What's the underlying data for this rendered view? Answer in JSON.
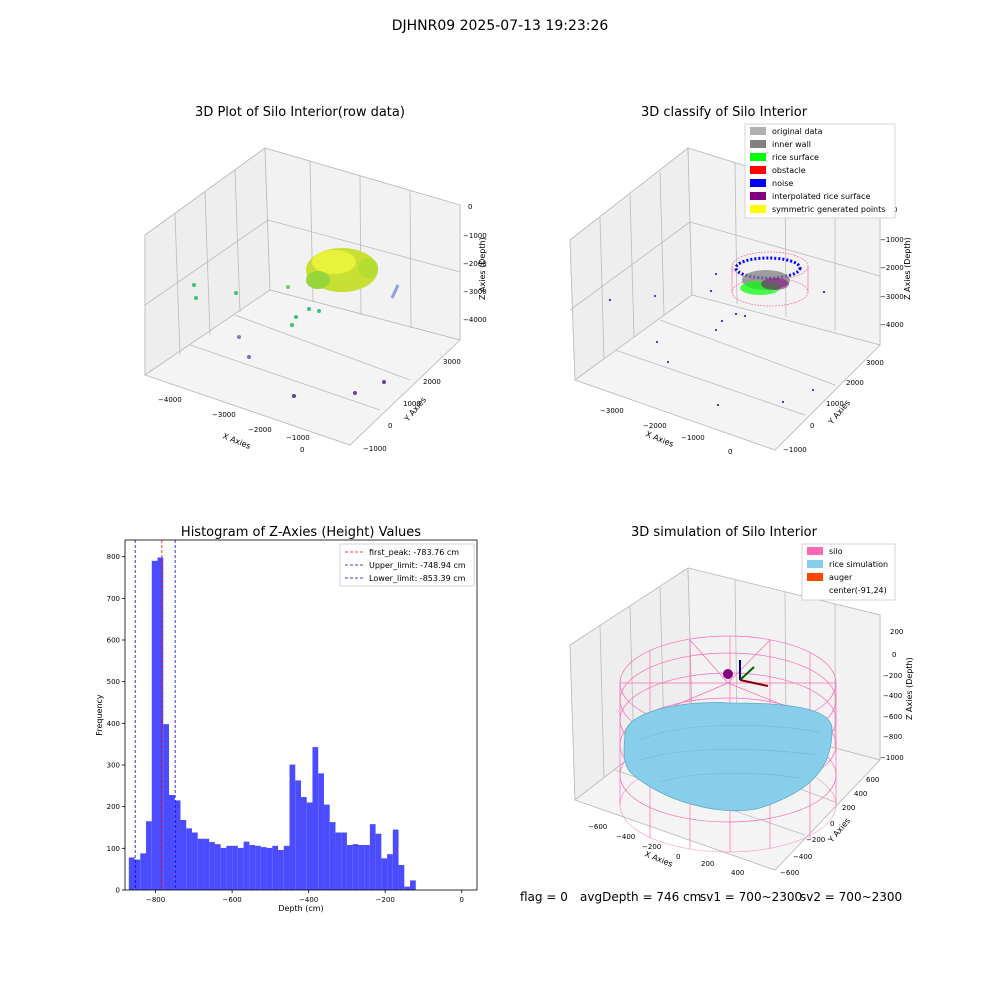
{
  "figure": {
    "suptitle": "DJHNR09 2025-07-13 19:23:26",
    "footer": {
      "flag": "flag = 0",
      "avg_depth": "avgDepth = 746 cm",
      "sv1": "sv1 = 700~2300",
      "sv2": "sv2 = 700~2300"
    }
  },
  "panels": {
    "raw": {
      "title": "3D Plot of Silo Interior(row data)",
      "xlabel": "X Axies",
      "ylabel": "Y Axies",
      "zlabel": "Z Axies (Depth)",
      "xticks": [
        "−4000",
        "−3000",
        "−2000",
        "−1000",
        "0"
      ],
      "yticks": [
        "−1000",
        "0",
        "1000",
        "2000",
        "3000"
      ],
      "zticks": [
        "0",
        "−1000",
        "−2000",
        "−3000",
        "−4000"
      ]
    },
    "classify": {
      "title": "3D classify of Silo Interior",
      "xlabel": "X Axies",
      "ylabel": "Y Axies",
      "zlabel": "Z Axies (Depth)",
      "xticks": [
        "−3000",
        "−2000",
        "−1000",
        "0"
      ],
      "yticks": [
        "−1000",
        "0",
        "1000",
        "2000",
        "3000"
      ],
      "zticks": [
        "0",
        "−1000",
        "−2000",
        "−3000",
        "−4000"
      ],
      "legend": [
        {
          "label": "original data",
          "color": "#b0b0b0"
        },
        {
          "label": "inner wall",
          "color": "#808080"
        },
        {
          "label": "rice surface",
          "color": "#00ff00"
        },
        {
          "label": "obstacle",
          "color": "#ff0000"
        },
        {
          "label": "noise",
          "color": "#0000ff"
        },
        {
          "label": "interpolated rice surface",
          "color": "#800080"
        },
        {
          "label": "symmetric generated points",
          "color": "#ffff00"
        }
      ]
    },
    "simulation": {
      "title": "3D simulation of Silo Interior",
      "xlabel": "X Axies",
      "ylabel": "Y Axies",
      "zlabel": "Z Axies (Depth)",
      "xticks": [
        "−600",
        "−400",
        "−200",
        "0",
        "200",
        "400"
      ],
      "yticks": [
        "−600",
        "−400",
        "−200",
        "0",
        "200",
        "400",
        "600"
      ],
      "zticks": [
        "200",
        "0",
        "−200",
        "−400",
        "−600",
        "−800",
        "−1000"
      ],
      "legend": [
        {
          "label": "silo",
          "color": "#ff69b4"
        },
        {
          "label": "rice simulation",
          "color": "#87ceeb"
        },
        {
          "label": "auger",
          "color": "#ff4500"
        },
        {
          "label": "center(-91,24)",
          "color": "none"
        }
      ]
    }
  },
  "chart_data": [
    {
      "type": "histogram",
      "title": "Histogram of Z-Axies (Height) Values",
      "xlabel": "Depth (cm)",
      "ylabel": "Frequency",
      "xlim": [
        -880,
        40
      ],
      "ylim": [
        0,
        840
      ],
      "xticks": [
        -800,
        -600,
        -400,
        -200,
        0
      ],
      "yticks": [
        0,
        100,
        200,
        300,
        400,
        500,
        600,
        700,
        800
      ],
      "bar_color": "#4b4bff",
      "bins": [
        {
          "x0": -870,
          "x1": -855,
          "v": 78
        },
        {
          "x0": -855,
          "x1": -840,
          "v": 73
        },
        {
          "x0": -840,
          "x1": -825,
          "v": 88
        },
        {
          "x0": -825,
          "x1": -810,
          "v": 165
        },
        {
          "x0": -810,
          "x1": -795,
          "v": 790
        },
        {
          "x0": -795,
          "x1": -780,
          "v": 798
        },
        {
          "x0": -780,
          "x1": -765,
          "v": 398
        },
        {
          "x0": -765,
          "x1": -750,
          "v": 228
        },
        {
          "x0": -750,
          "x1": -735,
          "v": 215
        },
        {
          "x0": -735,
          "x1": -720,
          "v": 168
        },
        {
          "x0": -720,
          "x1": -705,
          "v": 148
        },
        {
          "x0": -705,
          "x1": -690,
          "v": 138
        },
        {
          "x0": -690,
          "x1": -675,
          "v": 123
        },
        {
          "x0": -675,
          "x1": -660,
          "v": 123
        },
        {
          "x0": -660,
          "x1": -645,
          "v": 115
        },
        {
          "x0": -645,
          "x1": -630,
          "v": 110
        },
        {
          "x0": -630,
          "x1": -615,
          "v": 101
        },
        {
          "x0": -615,
          "x1": -600,
          "v": 106
        },
        {
          "x0": -600,
          "x1": -585,
          "v": 106
        },
        {
          "x0": -585,
          "x1": -570,
          "v": 101
        },
        {
          "x0": -570,
          "x1": -555,
          "v": 116
        },
        {
          "x0": -555,
          "x1": -540,
          "v": 108
        },
        {
          "x0": -540,
          "x1": -525,
          "v": 106
        },
        {
          "x0": -525,
          "x1": -510,
          "v": 103
        },
        {
          "x0": -510,
          "x1": -495,
          "v": 101
        },
        {
          "x0": -495,
          "x1": -480,
          "v": 106
        },
        {
          "x0": -480,
          "x1": -465,
          "v": 96
        },
        {
          "x0": -465,
          "x1": -450,
          "v": 106
        },
        {
          "x0": -450,
          "x1": -435,
          "v": 301
        },
        {
          "x0": -435,
          "x1": -420,
          "v": 263
        },
        {
          "x0": -420,
          "x1": -405,
          "v": 223
        },
        {
          "x0": -405,
          "x1": -390,
          "v": 210
        },
        {
          "x0": -390,
          "x1": -375,
          "v": 343
        },
        {
          "x0": -375,
          "x1": -360,
          "v": 280
        },
        {
          "x0": -360,
          "x1": -345,
          "v": 205
        },
        {
          "x0": -345,
          "x1": -330,
          "v": 163
        },
        {
          "x0": -330,
          "x1": -315,
          "v": 138
        },
        {
          "x0": -315,
          "x1": -300,
          "v": 138
        },
        {
          "x0": -300,
          "x1": -285,
          "v": 108
        },
        {
          "x0": -285,
          "x1": -270,
          "v": 110
        },
        {
          "x0": -270,
          "x1": -255,
          "v": 108
        },
        {
          "x0": -255,
          "x1": -240,
          "v": 108
        },
        {
          "x0": -240,
          "x1": -225,
          "v": 158
        },
        {
          "x0": -225,
          "x1": -210,
          "v": 135
        },
        {
          "x0": -210,
          "x1": -195,
          "v": 76
        },
        {
          "x0": -195,
          "x1": -180,
          "v": 86
        },
        {
          "x0": -180,
          "x1": -165,
          "v": 145
        },
        {
          "x0": -165,
          "x1": -150,
          "v": 60
        },
        {
          "x0": -150,
          "x1": -135,
          "v": 8
        },
        {
          "x0": -135,
          "x1": -120,
          "v": 23
        }
      ],
      "vlines": [
        {
          "label": "first_peak: -783.76 cm",
          "x": -783.76,
          "color": "#ff0000"
        },
        {
          "label": "Upper_limit: -748.94 cm",
          "x": -748.94,
          "color": "#0000cc"
        },
        {
          "label": "Lower_limit: -853.39 cm",
          "x": -853.39,
          "color": "#0000cc"
        }
      ]
    }
  ]
}
